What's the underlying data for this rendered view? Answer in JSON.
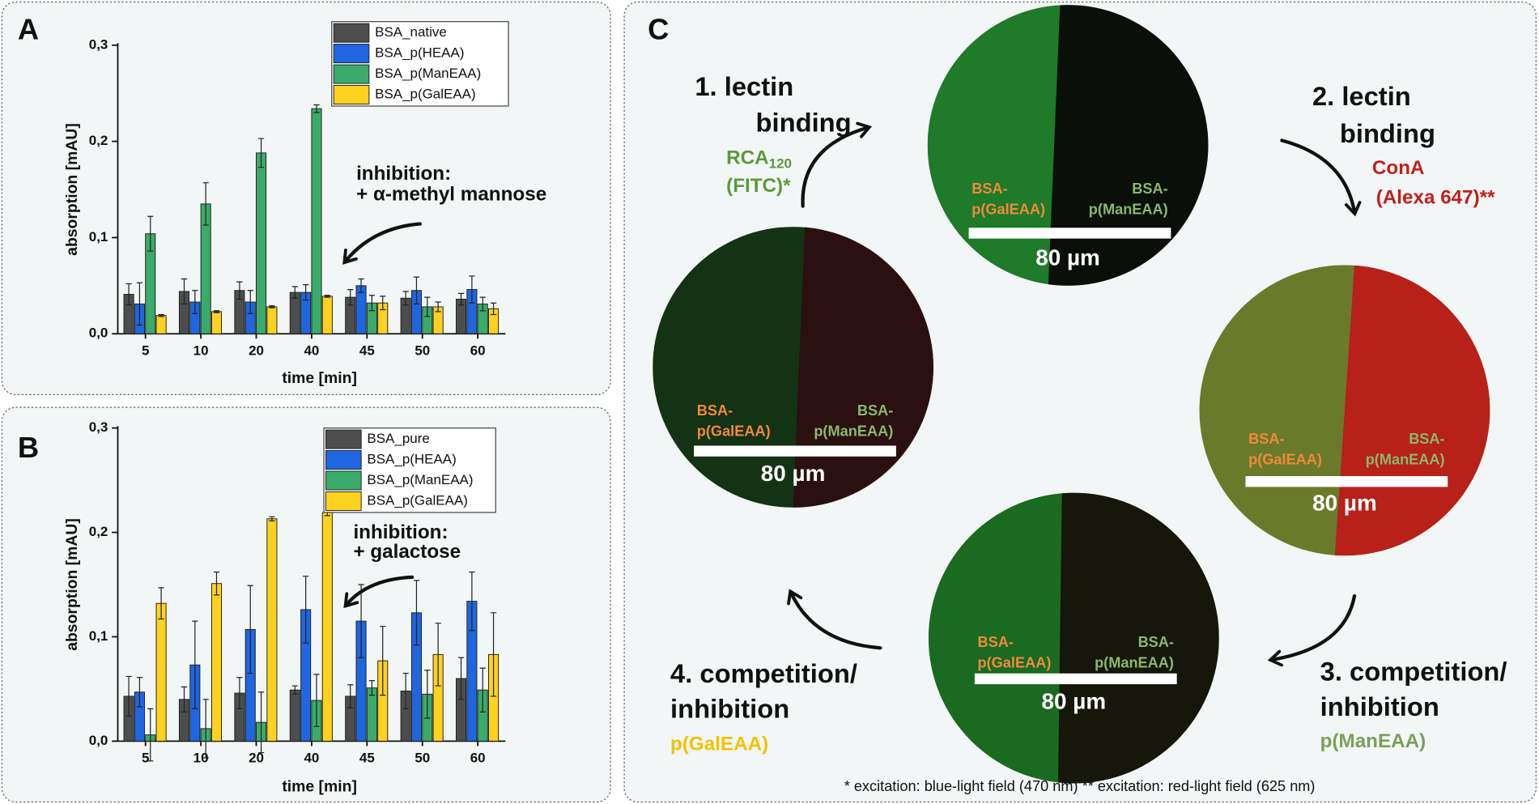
{
  "chart_data": [
    {
      "type": "bar",
      "panel": "A",
      "xlabel": "time [min]",
      "ylabel": "absorption [mAU]",
      "categories": [
        "5",
        "10",
        "20",
        "40",
        "45",
        "50",
        "60"
      ],
      "series": [
        {
          "name": "BSA_native",
          "color": "#4d4d4d",
          "values": [
            0.041,
            0.044,
            0.045,
            0.043,
            0.038,
            0.037,
            0.036
          ],
          "errors": [
            0.011,
            0.013,
            0.009,
            0.006,
            0.008,
            0.007,
            0.006
          ]
        },
        {
          "name": "BSA_p(HEAA)",
          "color": "#1f66e0",
          "values": [
            0.031,
            0.033,
            0.033,
            0.043,
            0.05,
            0.045,
            0.046
          ],
          "errors": [
            0.022,
            0.012,
            0.012,
            0.008,
            0.007,
            0.014,
            0.014
          ]
        },
        {
          "name": "BSA_p(ManEAA)",
          "color": "#3aab6a",
          "values": [
            0.104,
            0.135,
            0.188,
            0.234,
            0.032,
            0.028,
            0.031
          ],
          "errors": [
            0.018,
            0.022,
            0.015,
            0.004,
            0.008,
            0.01,
            0.007
          ]
        },
        {
          "name": "BSA_p(GalEAA)",
          "color": "#ffd21f",
          "values": [
            0.019,
            0.023,
            0.028,
            0.039,
            0.032,
            0.028,
            0.026
          ],
          "errors": [
            0.001,
            0.001,
            0.001,
            0.001,
            0.007,
            0.005,
            0.006
          ]
        }
      ],
      "ylim": [
        0,
        0.3
      ],
      "yticks": [
        {
          "value": 0,
          "label": "0,0"
        },
        {
          "value": 0.1,
          "label": "0,1"
        },
        {
          "value": 0.2,
          "label": "0,2"
        },
        {
          "value": 0.3,
          "label": "0,3"
        }
      ],
      "grid": false,
      "annotations": [
        "inhibition:",
        "+ α-methyl mannose"
      ]
    },
    {
      "type": "bar",
      "panel": "B",
      "xlabel": "time [min]",
      "ylabel": "absorption [mAU]",
      "categories": [
        "5",
        "10",
        "20",
        "40",
        "45",
        "50",
        "60"
      ],
      "series": [
        {
          "name": "BSA_pure",
          "color": "#4d4d4d",
          "values": [
            0.043,
            0.04,
            0.046,
            0.049,
            0.043,
            0.048,
            0.06
          ],
          "errors": [
            0.019,
            0.012,
            0.015,
            0.004,
            0.011,
            0.017,
            0.02
          ]
        },
        {
          "name": "BSA_p(HEAA)",
          "color": "#1f66e0",
          "values": [
            0.047,
            0.073,
            0.107,
            0.126,
            0.115,
            0.123,
            0.134
          ],
          "errors": [
            0.014,
            0.042,
            0.042,
            0.032,
            0.035,
            0.031,
            0.028
          ]
        },
        {
          "name": "BSA_p(ManEAA)",
          "color": "#3aab6a",
          "values": [
            0.006,
            0.012,
            0.018,
            0.039,
            0.051,
            0.045,
            0.049
          ],
          "errors": [
            0.025,
            0.028,
            0.029,
            0.025,
            0.007,
            0.023,
            0.021
          ]
        },
        {
          "name": "BSA_p(GalEAA)",
          "color": "#ffd21f",
          "values": [
            0.132,
            0.151,
            0.213,
            0.219,
            0.077,
            0.083,
            0.083
          ],
          "errors": [
            0.015,
            0.011,
            0.002,
            0.003,
            0.033,
            0.03,
            0.04
          ]
        }
      ],
      "ylim": [
        0,
        0.3
      ],
      "yticks": [
        {
          "value": 0,
          "label": "0,0"
        },
        {
          "value": 0.1,
          "label": "0,1"
        },
        {
          "value": 0.2,
          "label": "0,2"
        },
        {
          "value": 0.3,
          "label": "0,3"
        }
      ],
      "grid": false,
      "annotations": [
        "inhibition:",
        "+ galactose"
      ]
    }
  ],
  "panel_c": {
    "label": "C",
    "steps": [
      {
        "title": [
          "1. lectin",
          "binding"
        ],
        "reagent": [
          "RCA",
          "120",
          "(FITC)*"
        ]
      },
      {
        "title": [
          "2. lectin",
          "binding"
        ],
        "reagent": [
          "ConA",
          "(Alexa 647)**"
        ]
      },
      {
        "title": [
          "3. competition/",
          "inhibition"
        ],
        "reagent": [
          "p(ManEAA)"
        ]
      },
      {
        "title": [
          "4. competition/",
          "inhibition"
        ],
        "reagent": [
          "p(GalEAA)"
        ]
      }
    ],
    "images": [
      {
        "left_label": [
          "BSA-",
          "p(GalEAA)"
        ],
        "right_label": [
          "BSA-",
          "p(ManEAA)"
        ],
        "scale_bar": "80 µm"
      },
      {
        "left_label": [
          "BSA-",
          "p(GalEAA)"
        ],
        "right_label": [
          "BSA-",
          "p(ManEAA)"
        ],
        "scale_bar": "80 µm"
      },
      {
        "left_label": [
          "BSA-",
          "p(GalEAA)"
        ],
        "right_label": [
          "BSA-",
          "p(ManEAA)"
        ],
        "scale_bar": "80 µm"
      },
      {
        "left_label": [
          "BSA-",
          "p(GalEAA)"
        ],
        "right_label": [
          "BSA-",
          "p(ManEAA)"
        ],
        "scale_bar": "80 µm"
      }
    ],
    "footnote": "* excitation: blue-light field (470 nm)  ** excitation: red-light field (625 nm)"
  }
}
